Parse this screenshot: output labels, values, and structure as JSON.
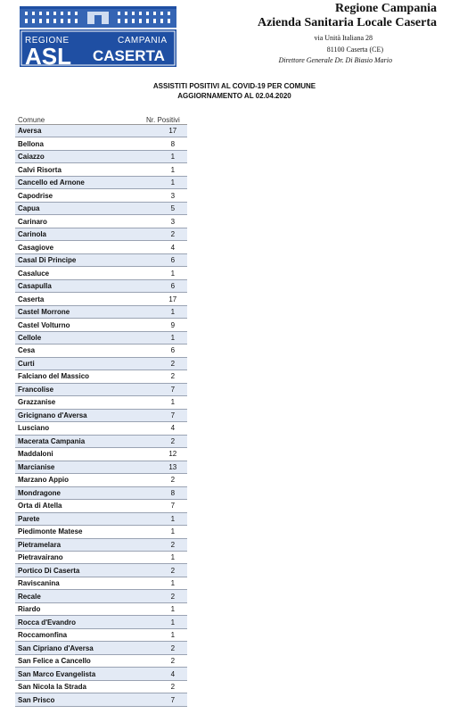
{
  "header": {
    "logo_top_left": "REGIONE",
    "logo_top_right": "CAMPANIA",
    "logo_asl": "ASL",
    "logo_caserta": "CASERTA",
    "org_line1": "Regione Campania",
    "org_line2": "Azienda Sanitaria Locale Caserta",
    "address_line1": "via Unità Italiana 28",
    "address_line2": "81100 Caserta (CE)",
    "director": "Direttore Generale Dr. Di Biasio Mario"
  },
  "title": {
    "line1": "ASSISTITI POSITIVI AL COVID-19 PER COMUNE",
    "line2": "AGGIORNAMENTO AL 02.04.2020"
  },
  "table": {
    "headers": [
      "Comune",
      "Nr. Positivi"
    ],
    "rows": [
      [
        "Aversa",
        "17"
      ],
      [
        "Bellona",
        "8"
      ],
      [
        "Caiazzo",
        "1"
      ],
      [
        "Calvi Risorta",
        "1"
      ],
      [
        "Cancello ed Arnone",
        "1"
      ],
      [
        "Capodrise",
        "3"
      ],
      [
        "Capua",
        "5"
      ],
      [
        "Carinaro",
        "3"
      ],
      [
        "Carinola",
        "2"
      ],
      [
        "Casagiove",
        "4"
      ],
      [
        "Casal Di Principe",
        "6"
      ],
      [
        "Casaluce",
        "1"
      ],
      [
        "Casapulla",
        "6"
      ],
      [
        "Caserta",
        "17"
      ],
      [
        "Castel Morrone",
        "1"
      ],
      [
        "Castel Volturno",
        "9"
      ],
      [
        "Cellole",
        "1"
      ],
      [
        "Cesa",
        "6"
      ],
      [
        "Curti",
        "2"
      ],
      [
        "Falciano del Massico",
        "2"
      ],
      [
        "Francolise",
        "7"
      ],
      [
        "Grazzanise",
        "1"
      ],
      [
        "Gricignano d'Aversa",
        "7"
      ],
      [
        "Lusciano",
        "4"
      ],
      [
        "Macerata Campania",
        "2"
      ],
      [
        "Maddaloni",
        "12"
      ],
      [
        "Marcianise",
        "13"
      ],
      [
        "Marzano Appio",
        "2"
      ],
      [
        "Mondragone",
        "8"
      ],
      [
        "Orta di Atella",
        "7"
      ],
      [
        "Parete",
        "1"
      ],
      [
        "Piedimonte Matese",
        "1"
      ],
      [
        "Pietramelara",
        "2"
      ],
      [
        "Pietravairano",
        "1"
      ],
      [
        "Portico Di Caserta",
        "2"
      ],
      [
        "Raviscanina",
        "1"
      ],
      [
        "Recale",
        "2"
      ],
      [
        "Riardo",
        "1"
      ],
      [
        "Rocca d'Evandro",
        "1"
      ],
      [
        "Roccamonfina",
        "1"
      ],
      [
        "San Cipriano d'Aversa",
        "2"
      ],
      [
        "San Felice a Cancello",
        "2"
      ],
      [
        "San Marco Evangelista",
        "4"
      ],
      [
        "San Nicola la Strada",
        "2"
      ],
      [
        "San Prisco",
        "7"
      ]
    ]
  },
  "colors": {
    "logo_blue": "#1f4fa3",
    "row_shade": "#e3eaf5"
  }
}
